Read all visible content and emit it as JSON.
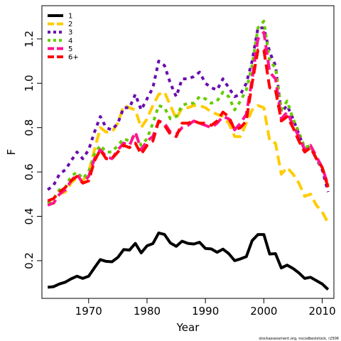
{
  "chart_data": {
    "type": "line",
    "xlabel": "Year",
    "ylabel": "F",
    "xlim": [
      1962,
      2012
    ],
    "ylim": [
      0.03,
      1.35
    ],
    "x_ticks": [
      1970,
      1980,
      1990,
      2000,
      2010
    ],
    "y_ticks": [
      0.2,
      0.4,
      0.6,
      0.8,
      1.0,
      1.2
    ],
    "x_tick_labels": [
      "1970",
      "1980",
      "1990",
      "2000",
      "2010"
    ],
    "y_tick_labels": [
      "0.2",
      "0.4",
      "0.6",
      "0.8",
      "1.0",
      "1.2"
    ],
    "grid": false,
    "legend_position": "top-left",
    "footnote": "stockassessment.org, nscodbeststock, r2506",
    "x": [
      1963,
      1964,
      1965,
      1966,
      1967,
      1968,
      1969,
      1970,
      1971,
      1972,
      1973,
      1974,
      1975,
      1976,
      1977,
      1978,
      1979,
      1980,
      1981,
      1982,
      1983,
      1984,
      1985,
      1986,
      1987,
      1988,
      1989,
      1990,
      1991,
      1992,
      1993,
      1994,
      1995,
      1996,
      1997,
      1998,
      1999,
      2000,
      2001,
      2002,
      2003,
      2004,
      2005,
      2006,
      2007,
      2008,
      2009,
      2010,
      2011
    ],
    "series": [
      {
        "name": "1",
        "color": "#000000",
        "dash": "solid",
        "values": [
          0.08,
          0.083,
          0.095,
          0.103,
          0.118,
          0.13,
          0.12,
          0.13,
          0.168,
          0.205,
          0.197,
          0.195,
          0.215,
          0.25,
          0.248,
          0.278,
          0.235,
          0.267,
          0.277,
          0.325,
          0.318,
          0.28,
          0.265,
          0.288,
          0.278,
          0.275,
          0.283,
          0.255,
          0.253,
          0.238,
          0.252,
          0.232,
          0.2,
          0.208,
          0.218,
          0.29,
          0.318,
          0.318,
          0.23,
          0.232,
          0.167,
          0.18,
          0.165,
          0.145,
          0.12,
          0.125,
          0.11,
          0.095,
          0.07
        ]
      },
      {
        "name": "2",
        "color": "#ffcc00",
        "dash": "dashed",
        "values": [
          0.455,
          0.458,
          0.5,
          0.51,
          0.55,
          0.575,
          0.56,
          0.6,
          0.7,
          0.8,
          0.78,
          0.78,
          0.82,
          0.9,
          0.89,
          0.88,
          0.8,
          0.84,
          0.9,
          0.95,
          0.96,
          0.9,
          0.84,
          0.89,
          0.89,
          0.9,
          0.9,
          0.89,
          0.87,
          0.86,
          0.85,
          0.82,
          0.76,
          0.76,
          0.82,
          0.88,
          0.9,
          0.89,
          0.74,
          0.73,
          0.59,
          0.62,
          0.59,
          0.55,
          0.49,
          0.5,
          0.45,
          0.42,
          0.37
        ]
      },
      {
        "name": "3",
        "color": "#6a0dad",
        "dash": "dotted",
        "values": [
          0.52,
          0.54,
          0.59,
          0.61,
          0.65,
          0.69,
          0.66,
          0.7,
          0.78,
          0.85,
          0.8,
          0.79,
          0.82,
          0.89,
          0.89,
          0.95,
          0.88,
          0.93,
          0.98,
          1.1,
          1.08,
          1.0,
          0.94,
          1.02,
          1.02,
          1.03,
          1.05,
          1.0,
          0.98,
          0.97,
          1.02,
          0.98,
          0.94,
          0.95,
          1.0,
          1.1,
          1.25,
          1.25,
          1.14,
          1.08,
          0.87,
          0.9,
          0.84,
          0.77,
          0.7,
          0.72,
          0.66,
          0.61,
          0.51
        ]
      },
      {
        "name": "4",
        "color": "#66cc00",
        "dash": "dotted",
        "values": [
          0.46,
          0.48,
          0.52,
          0.53,
          0.58,
          0.6,
          0.57,
          0.6,
          0.68,
          0.72,
          0.69,
          0.69,
          0.72,
          0.75,
          0.74,
          0.77,
          0.72,
          0.75,
          0.82,
          0.9,
          0.89,
          0.84,
          0.85,
          0.9,
          0.91,
          0.91,
          0.94,
          0.93,
          0.91,
          0.92,
          0.96,
          0.94,
          0.88,
          0.92,
          0.97,
          1.08,
          1.25,
          1.28,
          1.1,
          1.07,
          0.88,
          0.92,
          0.84,
          0.78,
          0.71,
          0.72,
          0.66,
          0.62,
          0.54
        ]
      },
      {
        "name": "5",
        "color": "#ff1493",
        "dash": "dashed",
        "values": [
          0.45,
          0.46,
          0.5,
          0.52,
          0.56,
          0.59,
          0.55,
          0.58,
          0.66,
          0.7,
          0.67,
          0.66,
          0.7,
          0.73,
          0.72,
          0.78,
          0.7,
          0.74,
          0.76,
          0.83,
          0.82,
          0.78,
          0.77,
          0.8,
          0.81,
          0.83,
          0.82,
          0.81,
          0.8,
          0.82,
          0.85,
          0.84,
          0.79,
          0.82,
          0.86,
          1.02,
          1.2,
          1.23,
          1.05,
          1.02,
          0.84,
          0.87,
          0.81,
          0.76,
          0.7,
          0.72,
          0.67,
          0.62,
          0.54
        ]
      },
      {
        "name": "6+",
        "color": "#ff0000",
        "dash": "dashed",
        "values": [
          0.47,
          0.48,
          0.51,
          0.53,
          0.56,
          0.58,
          0.55,
          0.56,
          0.65,
          0.7,
          0.66,
          0.66,
          0.69,
          0.72,
          0.71,
          0.73,
          0.68,
          0.72,
          0.74,
          0.83,
          0.81,
          0.77,
          0.76,
          0.82,
          0.82,
          0.83,
          0.82,
          0.82,
          0.81,
          0.83,
          0.87,
          0.85,
          0.79,
          0.8,
          0.83,
          1.0,
          1.15,
          1.15,
          0.98,
          0.97,
          0.83,
          0.85,
          0.8,
          0.74,
          0.69,
          0.71,
          0.66,
          0.62,
          0.53
        ]
      }
    ]
  }
}
